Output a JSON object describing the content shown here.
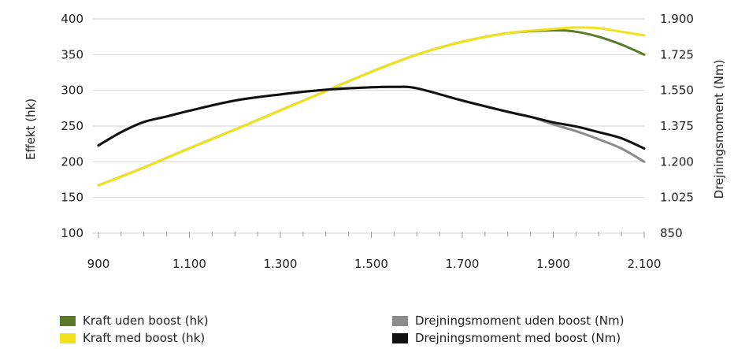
{
  "chart_data": {
    "type": "line",
    "x_ticks": [
      "900",
      "1.100",
      "1.300",
      "1.500",
      "1.700",
      "1.900",
      "2.100"
    ],
    "x_range": [
      900,
      2100
    ],
    "left_axis": {
      "label": "Effekt (hk)",
      "range": [
        100,
        400
      ],
      "ticks": [
        "100",
        "150",
        "200",
        "250",
        "300",
        "350",
        "400"
      ]
    },
    "right_axis": {
      "label": "Drejningsmoment (Nm)",
      "range": [
        850,
        1900
      ],
      "ticks": [
        "850",
        "1.025",
        "1.200",
        "1.375",
        "1.550",
        "1.725",
        "1.900"
      ]
    },
    "grid": "horizontal",
    "legend_position": "bottom",
    "series": [
      {
        "name": "Kraft uden boost (hk)",
        "axis": "left",
        "color": "#5a7a2a",
        "points": [
          [
            900,
            167
          ],
          [
            1000,
            192
          ],
          [
            1100,
            219
          ],
          [
            1200,
            245
          ],
          [
            1300,
            272
          ],
          [
            1400,
            299
          ],
          [
            1500,
            326
          ],
          [
            1600,
            350
          ],
          [
            1700,
            368
          ],
          [
            1800,
            380
          ],
          [
            1900,
            384
          ],
          [
            1950,
            382
          ],
          [
            2000,
            375
          ],
          [
            2050,
            364
          ],
          [
            2100,
            350
          ]
        ]
      },
      {
        "name": "Kraft med boost (hk)",
        "axis": "left",
        "color": "#f2e21b",
        "points": [
          [
            900,
            167
          ],
          [
            1000,
            192
          ],
          [
            1100,
            219
          ],
          [
            1200,
            245
          ],
          [
            1300,
            272
          ],
          [
            1400,
            299
          ],
          [
            1500,
            326
          ],
          [
            1600,
            350
          ],
          [
            1700,
            368
          ],
          [
            1800,
            380
          ],
          [
            1900,
            386
          ],
          [
            1950,
            388
          ],
          [
            2000,
            387
          ],
          [
            2050,
            382
          ],
          [
            2100,
            377
          ]
        ]
      },
      {
        "name": "Drejningsmoment uden boost (Nm)",
        "axis": "right",
        "color": "#8c8c8c",
        "points": [
          [
            900,
            1280
          ],
          [
            950,
            1345
          ],
          [
            1000,
            1395
          ],
          [
            1050,
            1422
          ],
          [
            1100,
            1450
          ],
          [
            1200,
            1500
          ],
          [
            1300,
            1530
          ],
          [
            1400,
            1553
          ],
          [
            1500,
            1565
          ],
          [
            1550,
            1567
          ],
          [
            1600,
            1560
          ],
          [
            1700,
            1500
          ],
          [
            1800,
            1445
          ],
          [
            1850,
            1420
          ],
          [
            1900,
            1383
          ],
          [
            1950,
            1350
          ],
          [
            2000,
            1310
          ],
          [
            2050,
            1265
          ],
          [
            2100,
            1200
          ]
        ]
      },
      {
        "name": "Drejningsmoment med boost (Nm)",
        "axis": "right",
        "color": "#111111",
        "points": [
          [
            900,
            1280
          ],
          [
            950,
            1345
          ],
          [
            1000,
            1395
          ],
          [
            1050,
            1422
          ],
          [
            1100,
            1450
          ],
          [
            1200,
            1500
          ],
          [
            1300,
            1530
          ],
          [
            1400,
            1553
          ],
          [
            1500,
            1565
          ],
          [
            1550,
            1567
          ],
          [
            1600,
            1560
          ],
          [
            1700,
            1500
          ],
          [
            1800,
            1445
          ],
          [
            1850,
            1420
          ],
          [
            1900,
            1393
          ],
          [
            1950,
            1373
          ],
          [
            2000,
            1345
          ],
          [
            2050,
            1315
          ],
          [
            2100,
            1265
          ]
        ]
      }
    ]
  },
  "legend": {
    "left": [
      {
        "label": "Kraft uden boost (hk)",
        "color": "#5a7a2a"
      },
      {
        "label": "Kraft med boost (hk)",
        "color": "#f2e21b"
      }
    ],
    "right": [
      {
        "label": "Drejningsmoment uden boost (Nm)",
        "color": "#8c8c8c"
      },
      {
        "label": "Drejningsmoment med boost (Nm)",
        "color": "#111111"
      }
    ]
  }
}
